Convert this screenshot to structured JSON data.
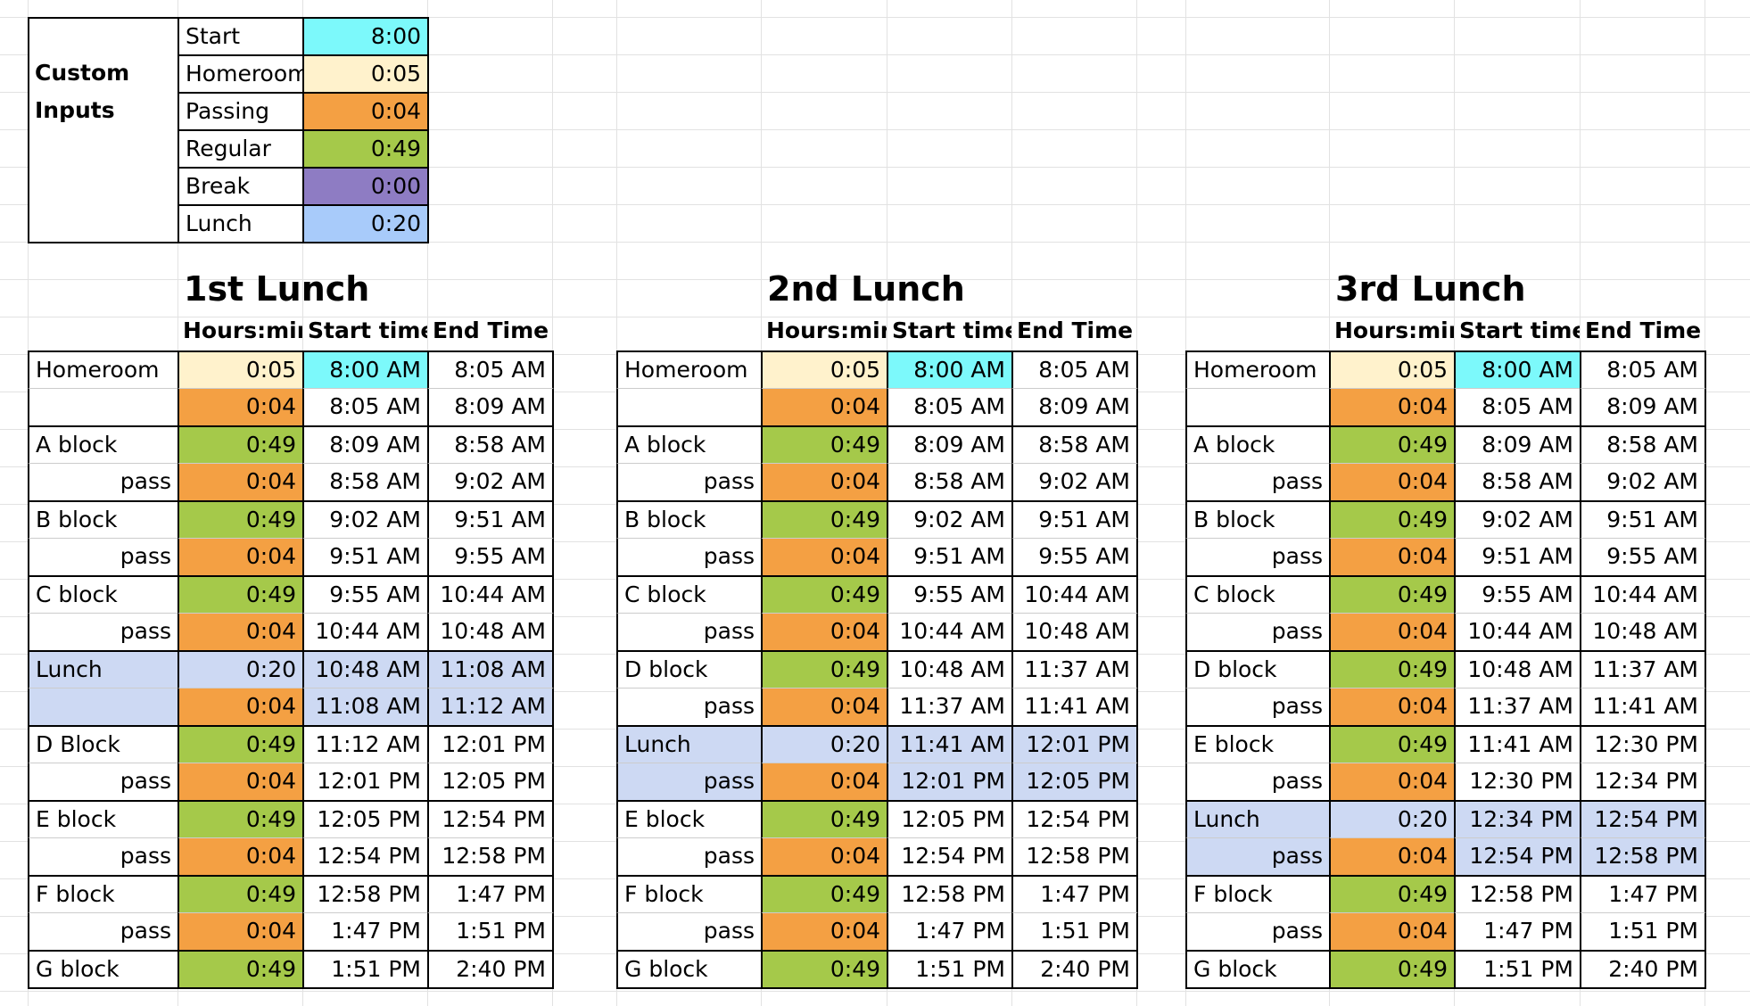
{
  "inputs": {
    "title": "Custom Inputs",
    "rows": [
      [
        "Start",
        "8:00"
      ],
      [
        "Homeroom",
        "0:05"
      ],
      [
        "Passing",
        "0:04"
      ],
      [
        "Regular",
        "0:49"
      ],
      [
        "Break",
        "0:00"
      ],
      [
        "Lunch",
        "0:20"
      ]
    ],
    "colors": [
      "#7cf9fb",
      "#fff2cc",
      "#f4a043",
      "#a5c94a",
      "#8e7cc3",
      "#a8cbfa"
    ]
  },
  "schedules": [
    {
      "title": "1st Lunch",
      "headers": [
        "Hours:min",
        "Start time",
        "End Time"
      ],
      "start_highlight": "#7cf9fb",
      "rows": [
        [
          "Homeroom",
          "0:05",
          "8:00 AM",
          "8:05 AM"
        ],
        [
          null,
          "0:04",
          "8:05 AM",
          "8:09 AM"
        ],
        [
          "A block",
          "0:49",
          "8:09 AM",
          "8:58 AM"
        ],
        [
          "pass",
          "0:04",
          "8:58 AM",
          "9:02 AM"
        ],
        [
          "B block",
          "0:49",
          "9:02 AM",
          "9:51 AM"
        ],
        [
          "pass",
          "0:04",
          "9:51 AM",
          "9:55 AM"
        ],
        [
          "C block",
          "0:49",
          "9:55 AM",
          "10:44 AM"
        ],
        [
          "pass",
          "0:04",
          "10:44 AM",
          "10:48 AM"
        ],
        [
          "Lunch",
          "0:20",
          "10:48 AM",
          "11:08 AM"
        ],
        [
          null,
          "0:04",
          "11:08 AM",
          "11:12 AM"
        ],
        [
          "D Block",
          "0:49",
          "11:12 AM",
          "12:01 PM"
        ],
        [
          "pass",
          "0:04",
          "12:01 PM",
          "12:05 PM"
        ],
        [
          "E block",
          "0:49",
          "12:05 PM",
          "12:54 PM"
        ],
        [
          "pass",
          "0:04",
          "12:54 PM",
          "12:58 PM"
        ],
        [
          "F block",
          "0:49",
          "12:58 PM",
          "1:47 PM"
        ],
        [
          "pass",
          "0:04",
          "1:47 PM",
          "1:51 PM"
        ],
        [
          "G block",
          "0:49",
          "1:51 PM",
          "2:40 PM"
        ]
      ],
      "duration_colors": [
        "#fff2cc",
        "#f4a043",
        "#a5c94a",
        "#f4a043",
        "#a5c94a",
        "#f4a043",
        "#a5c94a",
        "#f4a043",
        "#cdd9f3",
        "#f4a043",
        "#a5c94a",
        "#f4a043",
        "#a5c94a",
        "#f4a043",
        "#a5c94a",
        "#f4a043",
        "#a5c94a"
      ],
      "row_colors": [
        null,
        null,
        null,
        null,
        null,
        null,
        null,
        null,
        "#cdd9f3",
        "#cdd9f3",
        null,
        null,
        null,
        null,
        null,
        null,
        null
      ],
      "label_align": [
        "left",
        "left",
        "left",
        "right",
        "left",
        "right",
        "left",
        "right",
        "left",
        "left",
        "left",
        "right",
        "left",
        "right",
        "left",
        "right",
        "left"
      ]
    },
    {
      "title": "2nd Lunch",
      "headers": [
        "Hours:min",
        "Start time",
        "End Time"
      ],
      "start_highlight": "#7cf9fb",
      "rows": [
        [
          "Homeroom",
          "0:05",
          "8:00 AM",
          "8:05 AM"
        ],
        [
          null,
          "0:04",
          "8:05 AM",
          "8:09 AM"
        ],
        [
          "A block",
          "0:49",
          "8:09 AM",
          "8:58 AM"
        ],
        [
          "pass",
          "0:04",
          "8:58 AM",
          "9:02 AM"
        ],
        [
          "B block",
          "0:49",
          "9:02 AM",
          "9:51 AM"
        ],
        [
          "pass",
          "0:04",
          "9:51 AM",
          "9:55 AM"
        ],
        [
          "C block",
          "0:49",
          "9:55 AM",
          "10:44 AM"
        ],
        [
          "pass",
          "0:04",
          "10:44 AM",
          "10:48 AM"
        ],
        [
          "D block",
          "0:49",
          "10:48 AM",
          "11:37 AM"
        ],
        [
          "pass",
          "0:04",
          "11:37 AM",
          "11:41 AM"
        ],
        [
          "Lunch",
          "0:20",
          "11:41 AM",
          "12:01 PM"
        ],
        [
          "pass",
          "0:04",
          "12:01 PM",
          "12:05 PM"
        ],
        [
          "E block",
          "0:49",
          "12:05 PM",
          "12:54 PM"
        ],
        [
          "pass",
          "0:04",
          "12:54 PM",
          "12:58 PM"
        ],
        [
          "F block",
          "0:49",
          "12:58 PM",
          "1:47 PM"
        ],
        [
          "pass",
          "0:04",
          "1:47 PM",
          "1:51 PM"
        ],
        [
          "G block",
          "0:49",
          "1:51 PM",
          "2:40 PM"
        ]
      ],
      "duration_colors": [
        "#fff2cc",
        "#f4a043",
        "#a5c94a",
        "#f4a043",
        "#a5c94a",
        "#f4a043",
        "#a5c94a",
        "#f4a043",
        "#a5c94a",
        "#f4a043",
        "#cdd9f3",
        "#f4a043",
        "#a5c94a",
        "#f4a043",
        "#a5c94a",
        "#f4a043",
        "#a5c94a"
      ],
      "row_colors": [
        null,
        null,
        null,
        null,
        null,
        null,
        null,
        null,
        null,
        null,
        "#cdd9f3",
        "#cdd9f3",
        null,
        null,
        null,
        null,
        null
      ],
      "label_align": [
        "left",
        "left",
        "left",
        "right",
        "left",
        "right",
        "left",
        "right",
        "left",
        "right",
        "left",
        "right",
        "left",
        "right",
        "left",
        "right",
        "left"
      ]
    },
    {
      "title": "3rd Lunch",
      "headers": [
        "Hours:min",
        "Start time",
        "End Time"
      ],
      "start_highlight": "#7cf9fb",
      "rows": [
        [
          "Homeroom",
          "0:05",
          "8:00 AM",
          "8:05 AM"
        ],
        [
          null,
          "0:04",
          "8:05 AM",
          "8:09 AM"
        ],
        [
          "A block",
          "0:49",
          "8:09 AM",
          "8:58 AM"
        ],
        [
          "pass",
          "0:04",
          "8:58 AM",
          "9:02 AM"
        ],
        [
          "B block",
          "0:49",
          "9:02 AM",
          "9:51 AM"
        ],
        [
          "pass",
          "0:04",
          "9:51 AM",
          "9:55 AM"
        ],
        [
          "C block",
          "0:49",
          "9:55 AM",
          "10:44 AM"
        ],
        [
          "pass",
          "0:04",
          "10:44 AM",
          "10:48 AM"
        ],
        [
          "D block",
          "0:49",
          "10:48 AM",
          "11:37 AM"
        ],
        [
          "pass",
          "0:04",
          "11:37 AM",
          "11:41 AM"
        ],
        [
          "E block",
          "0:49",
          "11:41 AM",
          "12:30 PM"
        ],
        [
          "pass",
          "0:04",
          "12:30 PM",
          "12:34 PM"
        ],
        [
          "Lunch",
          "0:20",
          "12:34 PM",
          "12:54 PM"
        ],
        [
          "pass",
          "0:04",
          "12:54 PM",
          "12:58 PM"
        ],
        [
          "F block",
          "0:49",
          "12:58 PM",
          "1:47 PM"
        ],
        [
          "pass",
          "0:04",
          "1:47 PM",
          "1:51 PM"
        ],
        [
          "G block",
          "0:49",
          "1:51 PM",
          "2:40 PM"
        ]
      ],
      "duration_colors": [
        "#fff2cc",
        "#f4a043",
        "#a5c94a",
        "#f4a043",
        "#a5c94a",
        "#f4a043",
        "#a5c94a",
        "#f4a043",
        "#a5c94a",
        "#f4a043",
        "#a5c94a",
        "#f4a043",
        "#cdd9f3",
        "#f4a043",
        "#a5c94a",
        "#f4a043",
        "#a5c94a"
      ],
      "row_colors": [
        null,
        null,
        null,
        null,
        null,
        null,
        null,
        null,
        null,
        null,
        null,
        null,
        "#cdd9f3",
        "#cdd9f3",
        null,
        null,
        null
      ],
      "label_align": [
        "left",
        "left",
        "left",
        "right",
        "left",
        "right",
        "left",
        "right",
        "left",
        "right",
        "left",
        "right",
        "left",
        "right",
        "left",
        "right",
        "left"
      ]
    }
  ]
}
